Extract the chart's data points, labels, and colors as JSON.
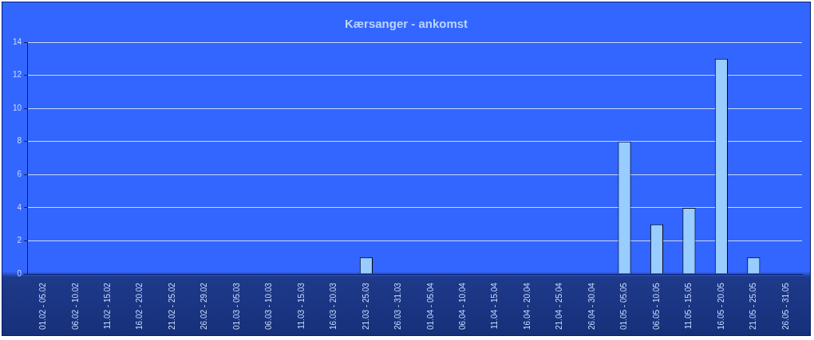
{
  "chart_data": {
    "type": "bar",
    "title": "Kærsanger - ankomst",
    "categories": [
      "01.02 - 05.02",
      "06.02 - 10.02",
      "11.02 - 15.02",
      "16.02 - 20.02",
      "21.02 - 25.02",
      "26.02 - 29.02",
      "01.03 - 05.03",
      "06.03 - 10.03",
      "11.03 - 15.03",
      "16.03 - 20.03",
      "21.03 - 25.03",
      "26.03 - 31.03",
      "01.04 - 05.04",
      "06.04 - 10.04",
      "11.04 - 15.04",
      "16.04 - 20.04",
      "21.04 - 25.04",
      "26.04 - 30.04",
      "01.05 - 05.05",
      "06.05 - 10.05",
      "11.05 - 15.05",
      "16.05 - 20.05",
      "21.05 - 25.05",
      "26.05 - 31.05"
    ],
    "values": [
      0,
      0,
      0,
      0,
      0,
      0,
      0,
      0,
      0,
      0,
      1,
      0,
      0,
      0,
      0,
      0,
      0,
      0,
      8,
      3,
      4,
      13,
      1,
      0
    ],
    "color": "#99ccff",
    "ylim": [
      0,
      14
    ],
    "yticks": [
      0,
      2,
      4,
      6,
      8,
      10,
      12,
      14
    ],
    "grid": "y",
    "legend": false
  }
}
